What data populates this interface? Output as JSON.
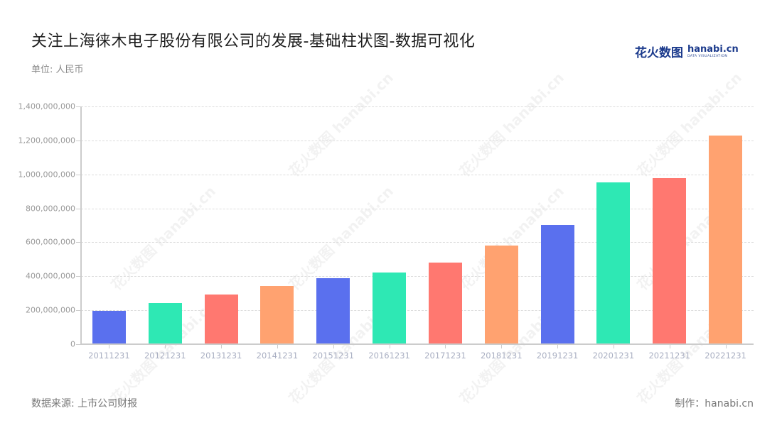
{
  "header": {
    "title": "关注上海徕木电子股份有限公司的发展-基础柱状图-数据可视化",
    "unit": "单位: 人民币"
  },
  "logo": {
    "cn": "花火数图",
    "en": "hanabi.cn",
    "en_sub": "DATA VISUALIZATION"
  },
  "footer": {
    "source": "数据来源: 上市公司财报",
    "credit": "制作：hanabi.cn"
  },
  "watermark": "花火数图 hanabi.cn",
  "chart_data": {
    "type": "bar",
    "title": "关注上海徕木电子股份有限公司的发展-基础柱状图-数据可视化",
    "subtitle": "单位: 人民币",
    "xlabel": "",
    "ylabel": "",
    "ylim": [
      0,
      1400000000
    ],
    "grid": true,
    "legend": "none",
    "y_ticks": [
      "0",
      "200,000,000",
      "400,000,000",
      "600,000,000",
      "800,000,000",
      "1,000,000,000",
      "1,200,000,000",
      "1,400,000,000"
    ],
    "categories": [
      "20111231",
      "20121231",
      "20131231",
      "20141231",
      "20151231",
      "20161231",
      "20171231",
      "20181231",
      "20191231",
      "20201231",
      "20211231",
      "20221231"
    ],
    "values": [
      196000000,
      242000000,
      292000000,
      343000000,
      389000000,
      422000000,
      481000000,
      581000000,
      702000000,
      953000000,
      978000000,
      1229000000
    ],
    "colors": [
      "#5a70ee",
      "#2ee8b4",
      "#ff7870",
      "#ffa270",
      "#5a70ee",
      "#2ee8b4",
      "#ff7870",
      "#ffa270",
      "#5a70ee",
      "#2ee8b4",
      "#ff7870",
      "#ffa270"
    ]
  }
}
